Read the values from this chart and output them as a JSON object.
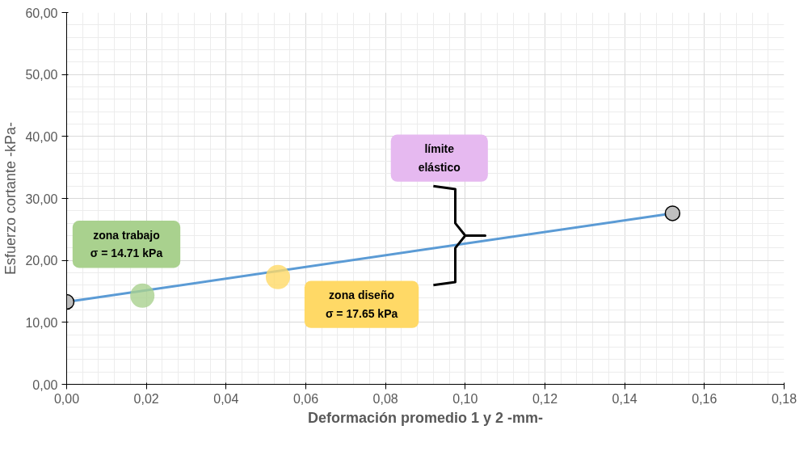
{
  "chart_data": {
    "type": "line",
    "xlabel": "Deformación promedio 1 y 2 -mm-",
    "ylabel": "Esfuerzo cortante -kPa-",
    "xlim": [
      0,
      0.18
    ],
    "ylim": [
      0,
      60
    ],
    "xticks": [
      {
        "value": 0,
        "label": "0,00"
      },
      {
        "value": 0.02,
        "label": "0,02"
      },
      {
        "value": 0.04,
        "label": "0,04"
      },
      {
        "value": 0.06,
        "label": "0,06"
      },
      {
        "value": 0.08,
        "label": "0,08"
      },
      {
        "value": 0.1,
        "label": "0,10"
      },
      {
        "value": 0.12,
        "label": "0,12"
      },
      {
        "value": 0.14,
        "label": "0,14"
      },
      {
        "value": 0.16,
        "label": "0,16"
      },
      {
        "value": 0.18,
        "label": "0,18"
      }
    ],
    "yticks": [
      {
        "value": 0,
        "label": "0,00"
      },
      {
        "value": 10,
        "label": "10,00"
      },
      {
        "value": 20,
        "label": "20,00"
      },
      {
        "value": 30,
        "label": "30,00"
      },
      {
        "value": 40,
        "label": "40,00"
      },
      {
        "value": 50,
        "label": "50,00"
      },
      {
        "value": 60,
        "label": "60,00"
      }
    ],
    "grid": true,
    "marker": "circle",
    "line_style": "solid",
    "series": [
      {
        "color": "#5b9bd5",
        "x": [
          0,
          0.152
        ],
        "values": [
          13.3,
          27.6
        ]
      },
      {
        "type": "scatter",
        "color": "#a9d18e",
        "x": [
          0.019
        ],
        "values": [
          14.3
        ]
      },
      {
        "type": "scatter",
        "color": "#ffd966",
        "x": [
          0.053
        ],
        "values": [
          17.3
        ]
      }
    ],
    "annotations": [
      "zona trabajo\nσ = 14.71 kPa",
      "zona diseño\nσ = 17.65 kPa",
      "límite\nelástico"
    ]
  }
}
